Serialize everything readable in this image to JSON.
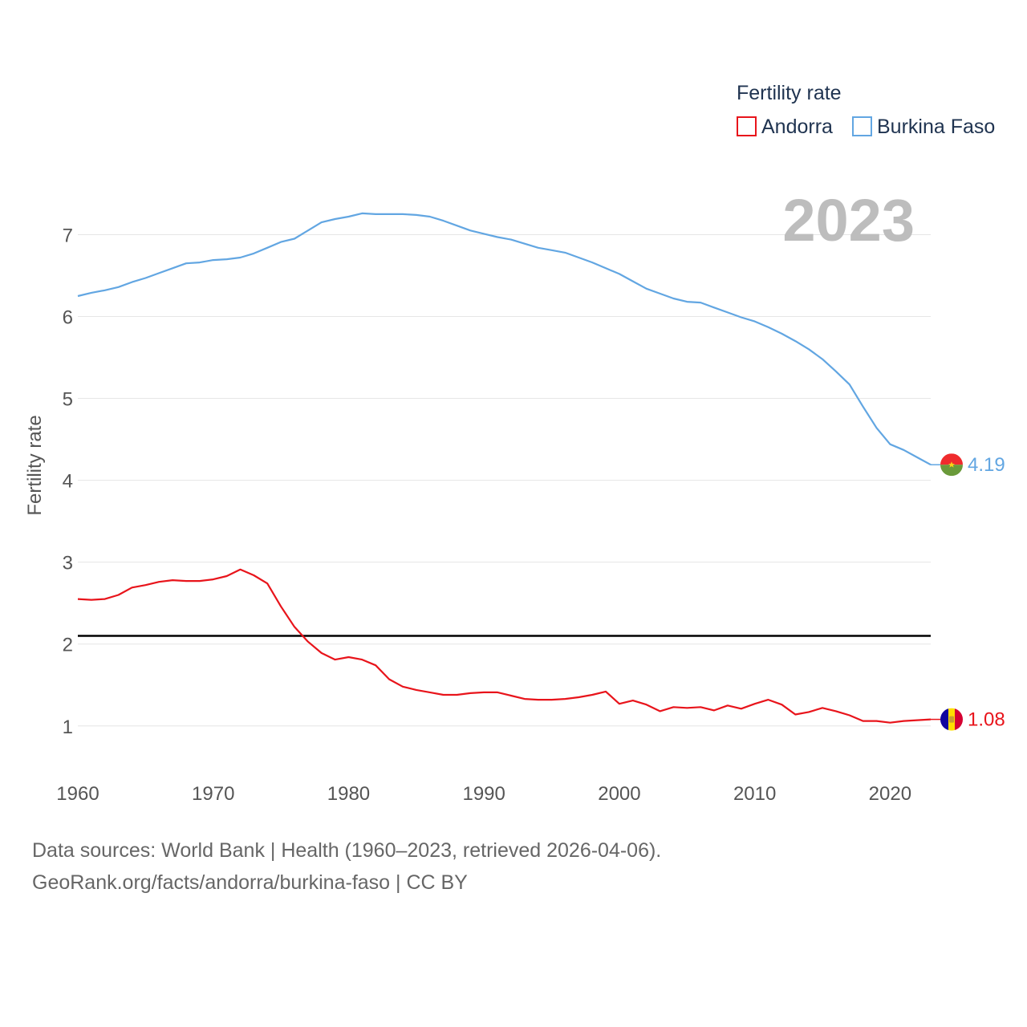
{
  "chart_data": {
    "type": "line",
    "ylabel": "Fertility rate",
    "xlabel": "",
    "xlim": [
      1960,
      2023
    ],
    "ylim": [
      0.4,
      7.7
    ],
    "x_ticks": [
      1960,
      1970,
      1980,
      1990,
      2000,
      2010,
      2020
    ],
    "y_ticks": [
      1,
      2,
      3,
      4,
      5,
      6,
      7
    ],
    "grid": true,
    "legend": {
      "title": "Fertility rate",
      "position": "top-right"
    },
    "current_year": "2023",
    "reference_line": {
      "y": 2.1,
      "color": "#000000"
    },
    "x": [
      1960,
      1961,
      1962,
      1963,
      1964,
      1965,
      1966,
      1967,
      1968,
      1969,
      1970,
      1971,
      1972,
      1973,
      1974,
      1975,
      1976,
      1977,
      1978,
      1979,
      1980,
      1981,
      1982,
      1983,
      1984,
      1985,
      1986,
      1987,
      1988,
      1989,
      1990,
      1991,
      1992,
      1993,
      1994,
      1995,
      1996,
      1997,
      1998,
      1999,
      2000,
      2001,
      2002,
      2003,
      2004,
      2005,
      2006,
      2007,
      2008,
      2009,
      2010,
      2011,
      2012,
      2013,
      2014,
      2015,
      2016,
      2017,
      2018,
      2019,
      2020,
      2021,
      2022,
      2023
    ],
    "series": [
      {
        "name": "Andorra",
        "color": "#e8141b",
        "end_label": "1.08",
        "flag": "andorra-flag",
        "values": [
          2.55,
          2.54,
          2.55,
          2.6,
          2.69,
          2.72,
          2.76,
          2.78,
          2.77,
          2.77,
          2.79,
          2.83,
          2.91,
          2.84,
          2.74,
          2.46,
          2.21,
          2.03,
          1.89,
          1.81,
          1.84,
          1.81,
          1.74,
          1.57,
          1.48,
          1.44,
          1.41,
          1.38,
          1.38,
          1.4,
          1.41,
          1.41,
          1.37,
          1.33,
          1.32,
          1.32,
          1.33,
          1.35,
          1.38,
          1.42,
          1.27,
          1.31,
          1.26,
          1.18,
          1.23,
          1.22,
          1.23,
          1.19,
          1.25,
          1.21,
          1.27,
          1.32,
          1.26,
          1.14,
          1.17,
          1.22,
          1.18,
          1.13,
          1.06,
          1.06,
          1.04,
          1.06,
          1.07,
          1.08
        ]
      },
      {
        "name": "Burkina Faso",
        "color": "#62a6e2",
        "end_label": "4.19",
        "flag": "burkina-faso-flag",
        "values": [
          6.25,
          6.29,
          6.32,
          6.36,
          6.42,
          6.47,
          6.53,
          6.59,
          6.65,
          6.66,
          6.69,
          6.7,
          6.72,
          6.77,
          6.84,
          6.91,
          6.95,
          7.05,
          7.15,
          7.19,
          7.22,
          7.26,
          7.25,
          7.25,
          7.25,
          7.24,
          7.22,
          7.17,
          7.11,
          7.05,
          7.01,
          6.97,
          6.94,
          6.89,
          6.84,
          6.81,
          6.78,
          6.72,
          6.66,
          6.59,
          6.52,
          6.43,
          6.34,
          6.28,
          6.22,
          6.18,
          6.17,
          6.11,
          6.05,
          5.99,
          5.94,
          5.87,
          5.79,
          5.7,
          5.6,
          5.48,
          5.33,
          5.17,
          4.9,
          4.64,
          4.44,
          4.37,
          4.28,
          4.19
        ]
      }
    ]
  },
  "footer": {
    "line1": "Data sources: World Bank | Health (1960–2023, retrieved 2026-04-06).",
    "line2": "GeoRank.org/facts/andorra/burkina-faso | CC BY"
  }
}
